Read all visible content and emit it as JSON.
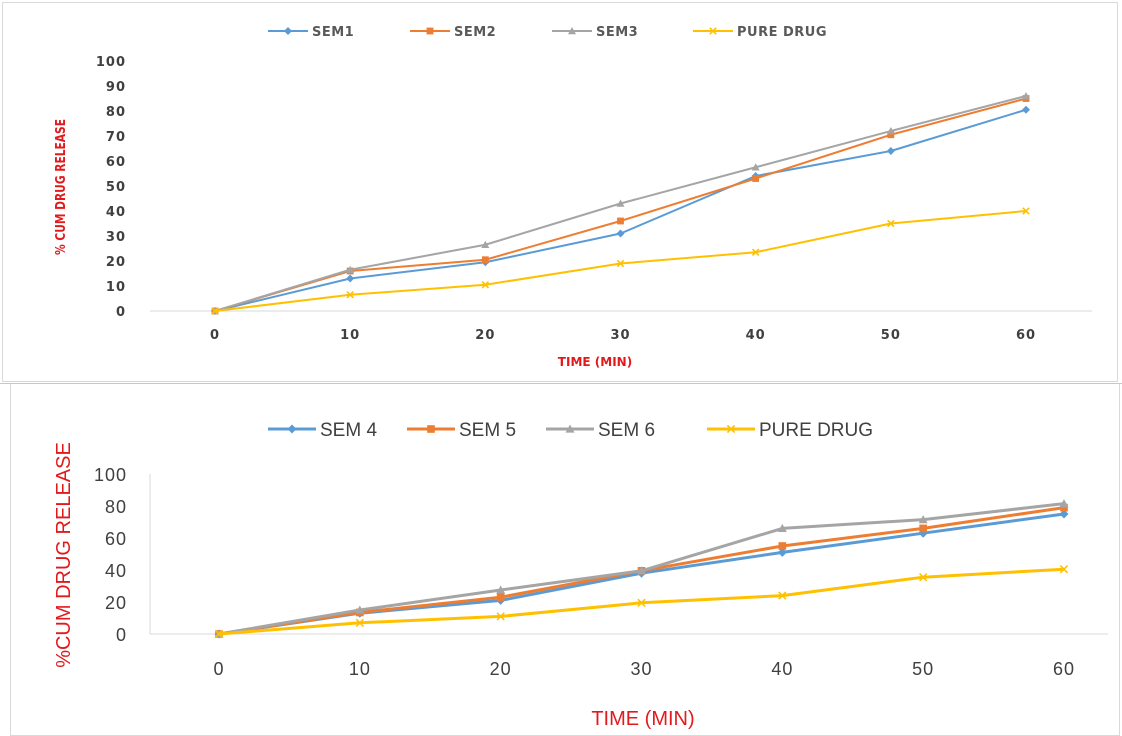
{
  "chart_data": [
    {
      "type": "line",
      "title": "",
      "xlabel": "TIME (MIN)",
      "ylabel": "% CUM DRUG RELEASE",
      "x": [
        0,
        10,
        20,
        30,
        40,
        50,
        60
      ],
      "x_tick_labels": [
        "0",
        "10",
        "20",
        "30",
        "40",
        "50",
        "60"
      ],
      "y_tick_labels": [
        "0",
        "10",
        "20",
        "30",
        "40",
        "50",
        "60",
        "70",
        "80",
        "90",
        "100"
      ],
      "ylim": [
        0,
        100
      ],
      "grid": false,
      "legend_position": "top",
      "series": [
        {
          "name": "SEM1",
          "color": "#5b9bd5",
          "marker": "diamond",
          "values": [
            0,
            13,
            19.5,
            31,
            54,
            64,
            80.5
          ]
        },
        {
          "name": "SEM2",
          "color": "#ed7d31",
          "marker": "square",
          "values": [
            0,
            16,
            20.5,
            36,
            53,
            70.5,
            85
          ]
        },
        {
          "name": "SEM3",
          "color": "#a5a5a5",
          "marker": "triangle",
          "values": [
            0,
            16.5,
            26.5,
            43,
            57.5,
            72,
            86
          ]
        },
        {
          "name": "PURE DRUG",
          "color": "#ffc000",
          "marker": "x",
          "values": [
            0,
            6.5,
            10.5,
            19,
            23.5,
            35,
            40
          ]
        }
      ]
    },
    {
      "type": "line",
      "title": "",
      "xlabel": "TIME (MIN)",
      "ylabel": "%CUM DRUG RELEASE",
      "x": [
        0,
        10,
        20,
        30,
        40,
        50,
        60
      ],
      "x_tick_labels": [
        "0",
        "10",
        "20",
        "30",
        "40",
        "50",
        "60"
      ],
      "y_tick_labels": [
        "0",
        "20",
        "40",
        "60",
        "80",
        "100"
      ],
      "ylim": [
        0,
        100
      ],
      "grid": false,
      "legend_position": "top",
      "series": [
        {
          "name": "SEM 4",
          "color": "#5b9bd5",
          "marker": "diamond",
          "values": [
            0,
            13,
            21,
            38,
            51,
            63,
            75
          ]
        },
        {
          "name": "SEM 5",
          "color": "#ed7d31",
          "marker": "square",
          "values": [
            0,
            13.5,
            23,
            39.5,
            55,
            66,
            79
          ]
        },
        {
          "name": "SEM 6",
          "color": "#a5a5a5",
          "marker": "triangle",
          "values": [
            0,
            15,
            27.5,
            39.5,
            66,
            71.5,
            81.5
          ]
        },
        {
          "name": "PURE DRUG",
          "color": "#ffc000",
          "marker": "x",
          "values": [
            0,
            7,
            11,
            19.5,
            24,
            35.5,
            40.5
          ]
        }
      ]
    }
  ]
}
